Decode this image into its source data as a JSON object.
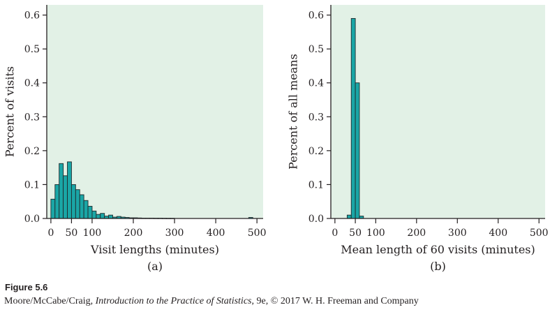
{
  "chart_data": [
    {
      "type": "bar",
      "panel_label": "(a)",
      "xlabel": "Visit lengths (minutes)",
      "ylabel": "Percent of visits",
      "xlim": [
        -10,
        515
      ],
      "ylim": [
        0,
        0.63
      ],
      "xticks": [
        0,
        50,
        100,
        200,
        300,
        400,
        500
      ],
      "yticks": [
        0.0,
        0.1,
        0.2,
        0.3,
        0.4,
        0.5,
        0.6
      ],
      "bin_width": 10,
      "bins": [
        {
          "x0": 0,
          "value": 0.057
        },
        {
          "x0": 10,
          "value": 0.1
        },
        {
          "x0": 20,
          "value": 0.162
        },
        {
          "x0": 30,
          "value": 0.126
        },
        {
          "x0": 40,
          "value": 0.167
        },
        {
          "x0": 50,
          "value": 0.1
        },
        {
          "x0": 60,
          "value": 0.085
        },
        {
          "x0": 70,
          "value": 0.07
        },
        {
          "x0": 80,
          "value": 0.053
        },
        {
          "x0": 90,
          "value": 0.036
        },
        {
          "x0": 100,
          "value": 0.022
        },
        {
          "x0": 110,
          "value": 0.012
        },
        {
          "x0": 120,
          "value": 0.015
        },
        {
          "x0": 130,
          "value": 0.007
        },
        {
          "x0": 140,
          "value": 0.01
        },
        {
          "x0": 150,
          "value": 0.004
        },
        {
          "x0": 160,
          "value": 0.006
        },
        {
          "x0": 170,
          "value": 0.004
        },
        {
          "x0": 180,
          "value": 0.003
        },
        {
          "x0": 190,
          "value": 0.002
        },
        {
          "x0": 200,
          "value": 0.002
        },
        {
          "x0": 210,
          "value": 0.0015
        },
        {
          "x0": 220,
          "value": 0.001
        },
        {
          "x0": 230,
          "value": 0.001
        },
        {
          "x0": 240,
          "value": 0.001
        },
        {
          "x0": 250,
          "value": 0.0008
        },
        {
          "x0": 260,
          "value": 0.0008
        },
        {
          "x0": 270,
          "value": 0.0006
        },
        {
          "x0": 280,
          "value": 0.0005
        },
        {
          "x0": 290,
          "value": 0.0005
        },
        {
          "x0": 480,
          "value": 0.003
        }
      ]
    },
    {
      "type": "bar",
      "panel_label": "(b)",
      "xlabel": "Mean length of 60 visits (minutes)",
      "ylabel": "Percent of all means",
      "xlim": [
        -10,
        515
      ],
      "ylim": [
        0,
        0.63
      ],
      "xticks": [
        0,
        50,
        100,
        200,
        300,
        400,
        500
      ],
      "yticks": [
        0.0,
        0.1,
        0.2,
        0.3,
        0.4,
        0.5,
        0.6
      ],
      "bin_width": 10,
      "bins": [
        {
          "x0": 30,
          "value": 0.01
        },
        {
          "x0": 40,
          "value": 0.59
        },
        {
          "x0": 50,
          "value": 0.4
        },
        {
          "x0": 60,
          "value": 0.007
        }
      ]
    }
  ],
  "caption": {
    "title": "Figure 5.6",
    "line_prefix": "Moore/McCabe/Craig, ",
    "line_book": "Introduction to the Practice of Statistics",
    "line_suffix": ", 9e, © 2017 W. H. Freeman and Company"
  },
  "colors": {
    "plot_background": "#e2f1e6",
    "bar_fill": "#1aa6a6",
    "bar_stroke": "#1f2a2c",
    "axis": "#231f20"
  }
}
